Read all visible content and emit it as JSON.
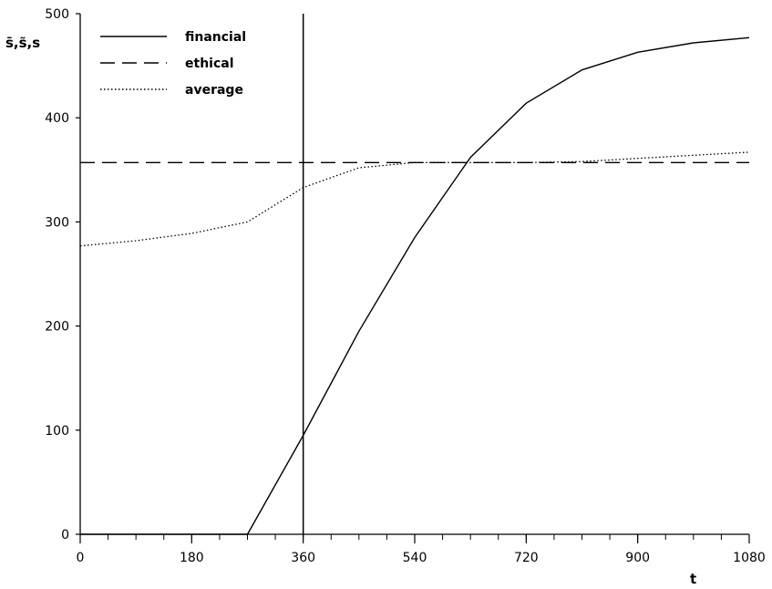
{
  "chart_data": {
    "type": "line",
    "title": "",
    "xlabel": "t",
    "ylabel": "s̄,s̃,s",
    "xlim": [
      0,
      1080
    ],
    "ylim": [
      0,
      500
    ],
    "xticks": [
      0,
      180,
      360,
      540,
      720,
      900,
      1080
    ],
    "xtick_labels": [
      "0",
      "180",
      "360",
      "540",
      "720",
      "900",
      "1080"
    ],
    "xminor_step": 45,
    "yticks": [
      0,
      100,
      200,
      300,
      400,
      500
    ],
    "ytick_labels": [
      "0",
      "100",
      "200",
      "300",
      "400",
      "500"
    ],
    "grid": false,
    "legend_position": "top-left",
    "vertical_line_x": 360,
    "series": [
      {
        "name": "financial",
        "style": "solid",
        "x": [
          0,
          270,
          360,
          450,
          540,
          630,
          720,
          810,
          900,
          990,
          1080
        ],
        "y": [
          0,
          0,
          95,
          195,
          285,
          362,
          414,
          446,
          463,
          472,
          477
        ]
      },
      {
        "name": "ethical",
        "style": "dashed",
        "x": [
          0,
          1080
        ],
        "y": [
          357,
          357
        ]
      },
      {
        "name": "average",
        "style": "dotted",
        "x": [
          0,
          90,
          180,
          270,
          360,
          450,
          540,
          630,
          720,
          810,
          900,
          990,
          1080
        ],
        "y": [
          277,
          282,
          289,
          300,
          333,
          352,
          357,
          357,
          357,
          358,
          361,
          364,
          367
        ]
      }
    ],
    "colors": {
      "line": "#000000"
    }
  }
}
